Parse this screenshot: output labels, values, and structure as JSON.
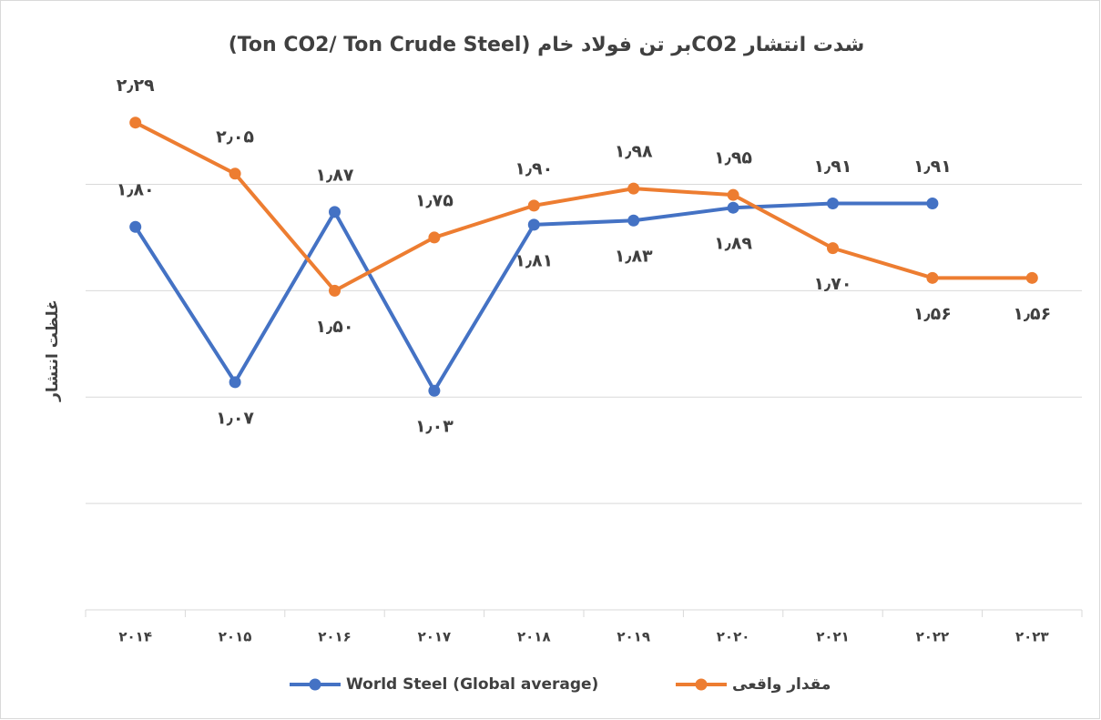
{
  "chart_data": {
    "type": "line",
    "title": "شدت انتشار  CO2بر تن فولاد خام (Ton CO2/ Ton Crude Steel)",
    "y_label": "غلظت انتشار",
    "categories": [
      "۲۰۱۴",
      "۲۰۱۵",
      "۲۰۱۶",
      "۲۰۱۷",
      "۲۰۱۸",
      "۲۰۱۹",
      "۲۰۲۰",
      "۲۰۲۱",
      "۲۰۲۲",
      "۲۰۲۳"
    ],
    "series": [
      {
        "name": "World Steel (Global average)",
        "color": "#4472c4",
        "values": [
          1.8,
          1.07,
          1.87,
          1.03,
          1.81,
          1.83,
          1.89,
          1.91,
          1.91,
          null
        ],
        "value_labels": [
          "۱٫۸۰",
          "۱٫۰۷",
          "۱٫۸۷",
          "۱٫۰۳",
          "۱٫۸۱",
          "۱٫۸۳",
          "۱٫۸۹",
          "۱٫۹۱",
          "۱٫۹۱",
          null
        ]
      },
      {
        "name": "مقدار واقعی",
        "color": "#ed7d31",
        "values": [
          2.29,
          2.05,
          1.5,
          1.75,
          1.9,
          1.98,
          1.95,
          1.7,
          1.56,
          1.56
        ],
        "value_labels": [
          "۲٫۲۹",
          "۲٫۰۵",
          "۱٫۵۰",
          "۱٫۷۵",
          "۱٫۹۰",
          "۱٫۹۸",
          "۱٫۹۵",
          "۱٫۷۰",
          "۱٫۵۶",
          "۱٫۵۶"
        ]
      }
    ],
    "ylim": [
      0,
      2.5
    ],
    "yticks": [
      0,
      0.5,
      1,
      1.5,
      2
    ],
    "grid": true
  }
}
